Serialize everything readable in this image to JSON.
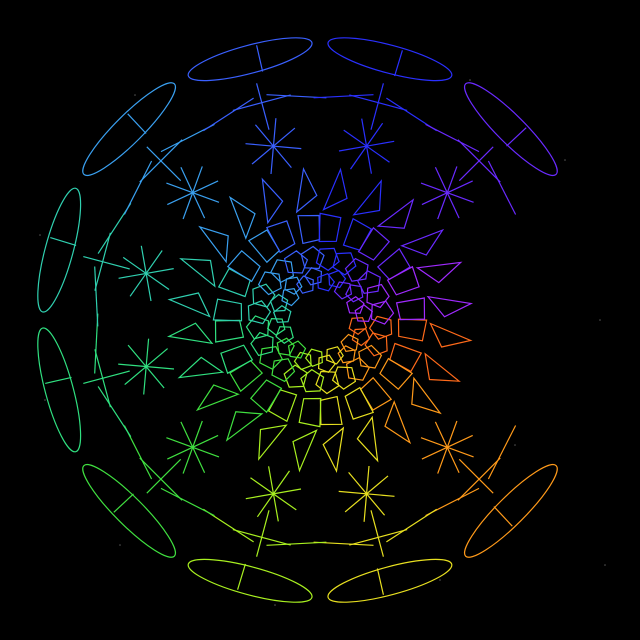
{
  "scene": {
    "background": "#000000",
    "description_free": true,
    "sectors": 12,
    "rings": [
      {
        "shape": "ellipse-with-tick"
      },
      {
        "shape": "crossed-lines-3"
      },
      {
        "shape": "crossed-lines-4-star"
      },
      {
        "shape": "triangle"
      },
      {
        "shape": "quadrilateral"
      },
      {
        "shape": "pentagon"
      }
    ],
    "missing_sector": "right",
    "palette": [
      "#ff6a1a",
      "#ff9a1a",
      "#e8e020",
      "#a8f020",
      "#40e040",
      "#30e080",
      "#30d0b0",
      "#3aa0f0",
      "#3a60ff",
      "#2a30ff",
      "#6a2aff",
      "#a02aff"
    ]
  }
}
